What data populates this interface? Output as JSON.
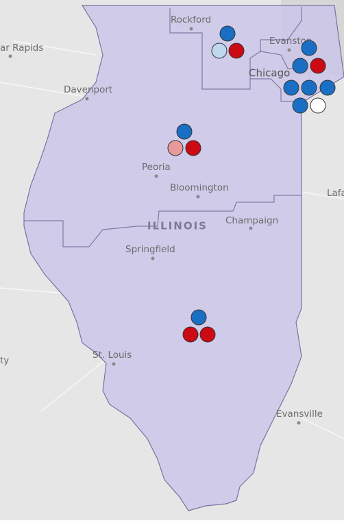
{
  "places": [
    {
      "label": "ar Rapids"
    },
    {
      "label": "Rockford"
    },
    {
      "label": "Evanston"
    },
    {
      "label": "Chicago"
    },
    {
      "label": "Davenport"
    },
    {
      "label": "Peoria"
    },
    {
      "label": "Bloomington"
    },
    {
      "label": "Champaign"
    },
    {
      "label": "Springfield"
    },
    {
      "label": "Lafa"
    },
    {
      "label": "St. Louis"
    },
    {
      "label": "ty"
    },
    {
      "label": "Evansville"
    }
  ],
  "state_label": "ILLINOIS"
}
